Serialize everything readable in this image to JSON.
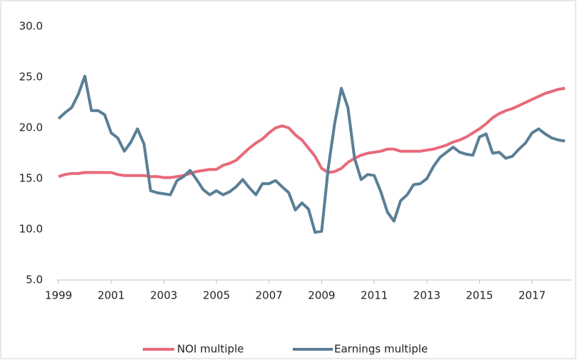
{
  "chart_data": {
    "type": "line",
    "categories": [
      "1999",
      null,
      null,
      null,
      null,
      null,
      null,
      null,
      "2001",
      null,
      null,
      null,
      null,
      null,
      null,
      null,
      "2003",
      null,
      null,
      null,
      null,
      null,
      null,
      null,
      "2005",
      null,
      null,
      null,
      null,
      null,
      null,
      null,
      "2007",
      null,
      null,
      null,
      null,
      null,
      null,
      null,
      "2009",
      null,
      null,
      null,
      null,
      null,
      null,
      null,
      "2011",
      null,
      null,
      null,
      null,
      null,
      null,
      null,
      "2013",
      null,
      null,
      null,
      null,
      null,
      null,
      null,
      "2015",
      null,
      null,
      null,
      null,
      null,
      null,
      null,
      "2017",
      null,
      null,
      null,
      null,
      null
    ],
    "series": [
      {
        "name": "NOI multiple",
        "color": "#e8697a",
        "values": [
          15.2,
          15.4,
          15.5,
          15.5,
          15.6,
          15.6,
          15.6,
          15.6,
          15.6,
          15.4,
          15.3,
          15.3,
          15.3,
          15.3,
          15.2,
          15.2,
          15.1,
          15.1,
          15.2,
          15.3,
          15.5,
          15.7,
          15.8,
          15.9,
          15.9,
          16.3,
          16.5,
          16.8,
          17.4,
          18.0,
          18.5,
          18.9,
          19.5,
          20.0,
          20.2,
          20.0,
          19.3,
          18.8,
          18.0,
          17.2,
          16.0,
          15.6,
          15.7,
          16.0,
          16.6,
          17.0,
          17.3,
          17.5,
          17.6,
          17.7,
          17.9,
          17.9,
          17.7,
          17.7,
          17.7,
          17.7,
          17.8,
          17.9,
          18.1,
          18.3,
          18.6,
          18.8,
          19.1,
          19.5,
          19.9,
          20.4,
          21.0,
          21.4,
          21.7,
          21.9,
          22.2,
          22.5,
          22.8,
          23.1,
          23.4,
          23.6,
          23.8,
          23.9
        ]
      },
      {
        "name": "Earnings multiple",
        "color": "#5a7f96",
        "values": [
          20.9,
          21.5,
          22.0,
          23.3,
          25.1,
          21.7,
          21.7,
          21.3,
          19.5,
          19.0,
          17.7,
          18.6,
          19.9,
          18.4,
          13.8,
          13.6,
          13.5,
          13.4,
          14.8,
          15.2,
          15.8,
          14.9,
          13.9,
          13.4,
          13.8,
          13.4,
          13.7,
          14.2,
          14.9,
          14.1,
          13.4,
          14.5,
          14.5,
          14.8,
          14.2,
          13.6,
          11.9,
          12.6,
          12.0,
          9.7,
          9.8,
          16.0,
          20.5,
          23.9,
          22.0,
          17.0,
          14.9,
          15.4,
          15.3,
          13.7,
          11.7,
          10.8,
          12.8,
          13.4,
          14.4,
          14.5,
          15.0,
          16.2,
          17.1,
          17.6,
          18.1,
          17.6,
          17.4,
          17.3,
          19.1,
          19.4,
          17.5,
          17.6,
          17.0,
          17.2,
          17.9,
          18.5,
          19.5,
          19.9,
          19.4,
          19.0,
          18.8,
          18.7
        ]
      }
    ],
    "ylim": [
      5,
      30
    ],
    "yticks": [
      {
        "value": 5,
        "label": "5.0"
      },
      {
        "value": 10,
        "label": "10.0"
      },
      {
        "value": 15,
        "label": "15.0"
      },
      {
        "value": 20,
        "label": "20.0"
      },
      {
        "value": 25,
        "label": "25.0"
      },
      {
        "value": 30,
        "label": "30.0"
      }
    ],
    "legend": "bottom"
  }
}
